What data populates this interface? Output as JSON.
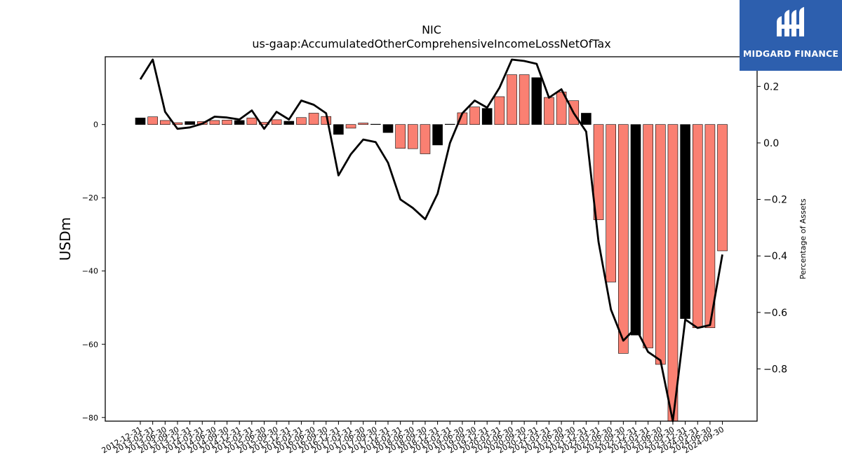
{
  "chart_data": {
    "type": "bar",
    "title": "NIC",
    "subtitle": "us-gaap:AccumulatedOtherComprehensiveIncomeLossNetOfTax",
    "ylabel": "USDm",
    "y2label": "Percentage of Assets",
    "ylim": [
      -81,
      18.5
    ],
    "y2lim": [
      -0.985,
      0.305
    ],
    "yticks": [
      -80,
      -60,
      -40,
      -20,
      0
    ],
    "y2ticks": [
      -0.8,
      -0.6,
      -0.4,
      -0.2,
      0.0,
      0.2
    ],
    "categories": [
      "2012-12-31",
      "2013-03-31",
      "2013-06-30",
      "2013-09-30",
      "2013-12-31",
      "2014-03-31",
      "2014-06-30",
      "2014-09-30",
      "2014-12-31",
      "2015-03-31",
      "2015-06-30",
      "2015-09-30",
      "2015-12-31",
      "2016-03-31",
      "2016-06-30",
      "2016-09-30",
      "2016-12-31",
      "2017-03-31",
      "2017-06-30",
      "2017-09-30",
      "2017-12-31",
      "2018-03-31",
      "2018-06-30",
      "2018-09-30",
      "2018-12-31",
      "2019-03-31",
      "2019-06-30",
      "2019-09-30",
      "2019-12-31",
      "2020-03-31",
      "2020-06-30",
      "2020-09-30",
      "2020-12-31",
      "2021-03-31",
      "2021-06-30",
      "2021-09-30",
      "2021-12-31",
      "2022-03-31",
      "2022-06-30",
      "2022-09-30",
      "2022-12-31",
      "2023-03-31",
      "2023-06-30",
      "2023-09-30",
      "2023-12-31",
      "2024-03-31",
      "2024-06-30",
      "2024-09-30"
    ],
    "series": [
      {
        "type": "bar",
        "axis": "left",
        "values": [
          1.8,
          2.1,
          1.1,
          0.5,
          0.8,
          0.8,
          1.1,
          1.2,
          1.1,
          1.8,
          0.6,
          1.3,
          0.9,
          1.9,
          3.1,
          2.2,
          -2.7,
          -1.0,
          0.4,
          0.1,
          -2.2,
          -6.5,
          -6.6,
          -8.0,
          -5.6,
          0.1,
          3.2,
          4.8,
          4.4,
          7.6,
          13.6,
          13.6,
          12.8,
          7.4,
          8.9,
          6.5,
          3.1,
          -26.0,
          -43.0,
          -62.5,
          -57.5,
          -61.0,
          -65.5,
          -81.0,
          -53.0,
          -55.5,
          -55.5,
          -34.5
        ]
      },
      {
        "type": "line",
        "axis": "right",
        "name": "Percentage of Assets",
        "values": [
          0.225,
          0.295,
          0.11,
          0.05,
          0.055,
          0.068,
          0.093,
          0.09,
          0.083,
          0.115,
          0.05,
          0.11,
          0.083,
          0.15,
          0.135,
          0.105,
          -0.115,
          -0.04,
          0.012,
          0.003,
          -0.07,
          -0.2,
          -0.23,
          -0.27,
          -0.18,
          0.0,
          0.105,
          0.15,
          0.125,
          0.195,
          0.295,
          0.29,
          0.28,
          0.16,
          0.19,
          0.105,
          0.04,
          -0.35,
          -0.59,
          -0.7,
          -0.655,
          -0.74,
          -0.77,
          -0.985,
          -0.625,
          -0.655,
          -0.645,
          -0.395
        ]
      }
    ],
    "bar_colors": [
      "#000000",
      "#fa8072",
      "#fa8072",
      "#fa8072",
      "#000000",
      "#fa8072",
      "#fa8072",
      "#fa8072",
      "#000000",
      "#fa8072",
      "#fa8072",
      "#fa8072",
      "#000000",
      "#fa8072",
      "#fa8072",
      "#fa8072",
      "#000000",
      "#fa8072",
      "#fa8072",
      "#fa8072",
      "#000000",
      "#fa8072",
      "#fa8072",
      "#fa8072",
      "#000000",
      "#fa8072",
      "#fa8072",
      "#fa8072",
      "#000000",
      "#fa8072",
      "#fa8072",
      "#fa8072",
      "#000000",
      "#fa8072",
      "#fa8072",
      "#fa8072",
      "#000000",
      "#fa8072",
      "#fa8072",
      "#fa8072",
      "#000000",
      "#fa8072",
      "#fa8072",
      "#fa8072",
      "#000000",
      "#fa8072",
      "#fa8072",
      "#fa8072"
    ],
    "line_color": "#000000",
    "grid": false,
    "legend": "none"
  },
  "logo": {
    "text": "MIDGARD FINANCE",
    "background": "#2d5fae",
    "icon": "midgard-finance-logo-icon"
  }
}
